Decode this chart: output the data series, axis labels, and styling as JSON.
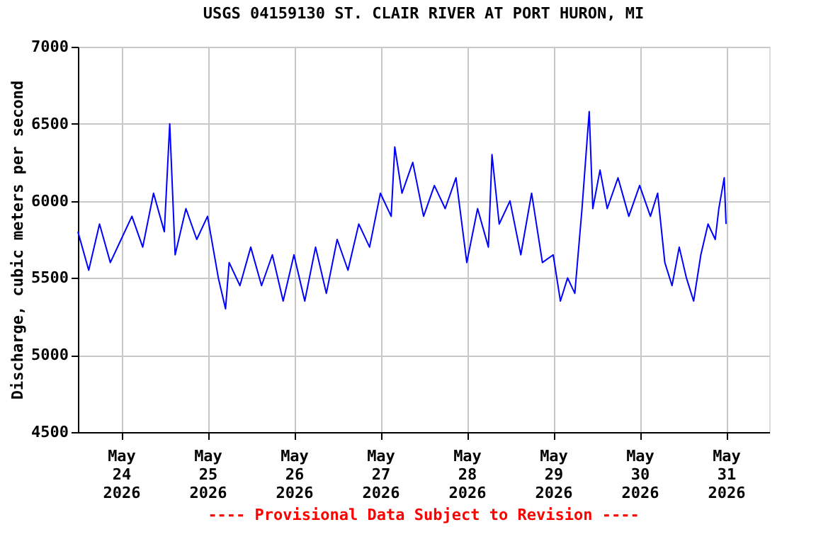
{
  "chart_data": {
    "type": "line",
    "title": "USGS 04159130 ST. CLAIR RIVER AT PORT HURON, MI",
    "ylabel": "Discharge, cubic meters per second",
    "annotations": [
      "---- Provisional Data Subject to Revision ----"
    ],
    "x": [
      "2026-05-23T12:00",
      "2026-05-23T15:00",
      "2026-05-23T18:00",
      "2026-05-23T21:00",
      "2026-05-24T00:00",
      "2026-05-24T03:00",
      "2026-05-24T06:00",
      "2026-05-24T09:00",
      "2026-05-24T12:00",
      "2026-05-24T13:30",
      "2026-05-24T15:00",
      "2026-05-24T18:00",
      "2026-05-24T21:00",
      "2026-05-25T00:00",
      "2026-05-25T03:00",
      "2026-05-25T05:00",
      "2026-05-25T06:00",
      "2026-05-25T09:00",
      "2026-05-25T12:00",
      "2026-05-25T15:00",
      "2026-05-25T18:00",
      "2026-05-25T21:00",
      "2026-05-26T00:00",
      "2026-05-26T03:00",
      "2026-05-26T06:00",
      "2026-05-26T09:00",
      "2026-05-26T12:00",
      "2026-05-26T15:00",
      "2026-05-26T18:00",
      "2026-05-26T21:00",
      "2026-05-27T00:00",
      "2026-05-27T03:00",
      "2026-05-27T04:00",
      "2026-05-27T06:00",
      "2026-05-27T09:00",
      "2026-05-27T12:00",
      "2026-05-27T15:00",
      "2026-05-27T18:00",
      "2026-05-27T21:00",
      "2026-05-28T00:00",
      "2026-05-28T03:00",
      "2026-05-28T06:00",
      "2026-05-28T07:00",
      "2026-05-28T09:00",
      "2026-05-28T12:00",
      "2026-05-28T15:00",
      "2026-05-28T18:00",
      "2026-05-28T21:00",
      "2026-05-29T00:00",
      "2026-05-29T02:00",
      "2026-05-29T04:00",
      "2026-05-29T06:00",
      "2026-05-29T08:00",
      "2026-05-29T10:00",
      "2026-05-29T11:00",
      "2026-05-29T13:00",
      "2026-05-29T15:00",
      "2026-05-29T18:00",
      "2026-05-29T21:00",
      "2026-05-30T00:00",
      "2026-05-30T03:00",
      "2026-05-30T05:00",
      "2026-05-30T07:00",
      "2026-05-30T09:00",
      "2026-05-30T11:00",
      "2026-05-30T13:00",
      "2026-05-30T15:00",
      "2026-05-30T17:00",
      "2026-05-30T19:00",
      "2026-05-30T21:00",
      "2026-05-30T22:00",
      "2026-05-30T23:30",
      "2026-05-31T00:00"
    ],
    "series": [
      {
        "color": "#0000ff",
        "values": [
          5800,
          5550,
          5850,
          5600,
          5750,
          5900,
          5700,
          6050,
          5800,
          6500,
          5650,
          5950,
          5750,
          5900,
          5500,
          5300,
          5600,
          5450,
          5700,
          5450,
          5650,
          5350,
          5650,
          5350,
          5700,
          5400,
          5750,
          5550,
          5850,
          5700,
          6050,
          5900,
          6350,
          6050,
          6250,
          5900,
          6100,
          5950,
          6150,
          5600,
          5950,
          5700,
          6300,
          5850,
          6000,
          5650,
          6050,
          5600,
          5650,
          5350,
          5500,
          5400,
          5950,
          6580,
          5950,
          6200,
          5950,
          6150,
          5900,
          6100,
          5900,
          6050,
          5600,
          5450,
          5700,
          5500,
          5350,
          5650,
          5850,
          5750,
          5950,
          6150,
          5850
        ]
      }
    ],
    "xlim": [
      "2026-05-23T12:00",
      "2026-05-31T12:00"
    ],
    "xticks": [
      {
        "value": "2026-05-24T00:00",
        "label": "May\n24\n2026"
      },
      {
        "value": "2026-05-25T00:00",
        "label": "May\n25\n2026"
      },
      {
        "value": "2026-05-26T00:00",
        "label": "May\n26\n2026"
      },
      {
        "value": "2026-05-27T00:00",
        "label": "May\n27\n2026"
      },
      {
        "value": "2026-05-28T00:00",
        "label": "May\n28\n2026"
      },
      {
        "value": "2026-05-29T00:00",
        "label": "May\n29\n2026"
      },
      {
        "value": "2026-05-30T00:00",
        "label": "May\n30\n2026"
      },
      {
        "value": "2026-05-31T00:00",
        "label": "May\n31\n2026"
      }
    ],
    "ylim": [
      4500,
      7000
    ],
    "yticks": [
      4500,
      5000,
      5500,
      6000,
      6500,
      7000
    ],
    "grid": true,
    "line_style": "solid",
    "marker": "none"
  }
}
